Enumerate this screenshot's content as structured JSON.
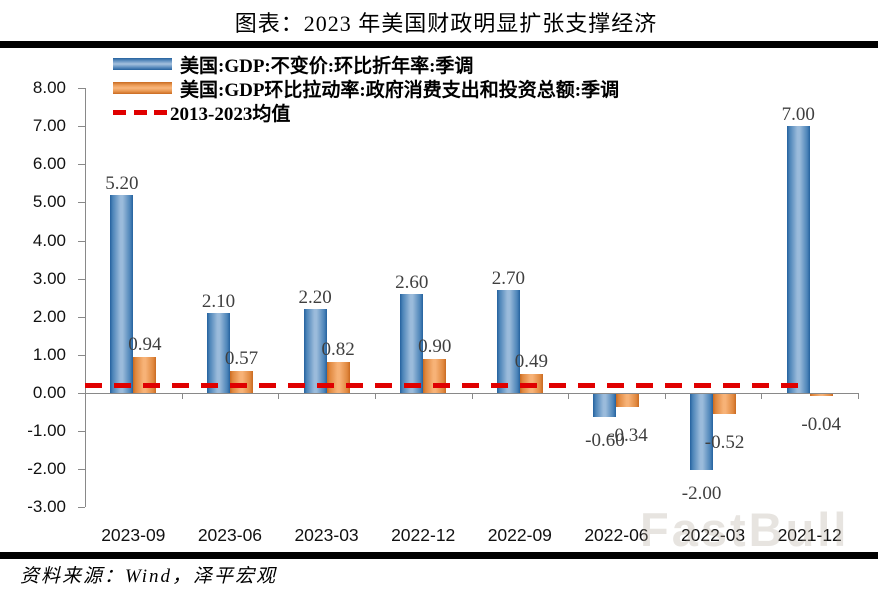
{
  "title": "图表：2023 年美国财政明显扩张支撑经济",
  "source": "资料来源：Wind，泽平宏观",
  "watermark": "FastBull",
  "colors": {
    "bar_blue": "#3a74ae",
    "bar_orange": "#ea913c",
    "mean_red": "#e00000",
    "axis_gray": "#898989",
    "rule_black": "#000000"
  },
  "legend": {
    "items": [
      {
        "label": "美国:GDP:不变价:环比折年率:季调",
        "swatch": "blue-bar"
      },
      {
        "label": "美国:GDP环比拉动率:政府消费支出和投资总额:季调",
        "swatch": "orange-bar"
      },
      {
        "label": "2013-2023均值",
        "swatch": "red-dashed-line"
      }
    ]
  },
  "chart_data": {
    "type": "bar",
    "title": "图表：2023 年美国财政明显扩张支撑经济",
    "categories": [
      "2023-09",
      "2023-06",
      "2023-03",
      "2022-12",
      "2022-09",
      "2022-06",
      "2022-03",
      "2021-12"
    ],
    "series": [
      {
        "name": "美国:GDP:不变价:环比折年率:季调",
        "color": "#3a74ae",
        "values": [
          5.2,
          2.1,
          2.2,
          2.6,
          2.7,
          -0.6,
          -2.0,
          7.0
        ]
      },
      {
        "name": "美国:GDP环比拉动率:政府消费支出和投资总额:季调",
        "color": "#ea913c",
        "values": [
          0.94,
          0.57,
          0.82,
          0.9,
          0.49,
          -0.34,
          -0.52,
          -0.04
        ]
      }
    ],
    "mean_line": {
      "name": "2013-2023均值",
      "value": 0.2,
      "color": "#e00000",
      "style": "dashed"
    },
    "ylim": [
      -3,
      8
    ],
    "ytick_labels": [
      "8.00",
      "7.00",
      "6.00",
      "5.00",
      "4.00",
      "3.00",
      "2.00",
      "1.00",
      "0.00",
      "-1.00",
      "-2.00",
      "-3.00"
    ],
    "value_label_decimals": 2,
    "grid": false,
    "legend_position": "top-left",
    "xlabel": "",
    "ylabel": ""
  }
}
